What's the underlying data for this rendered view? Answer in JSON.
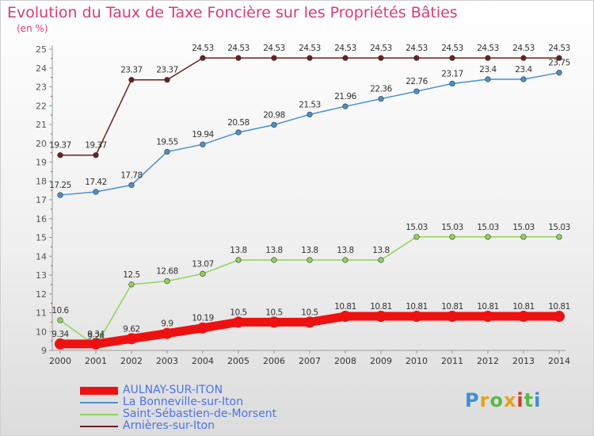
{
  "title": "Evolution du Taux de Taxe Foncière sur les Propriétés Bâties",
  "subtitle": "(en %)",
  "logo": {
    "text": "Proxiti",
    "colors": [
      "#3b8fd8",
      "#e8a020",
      "#5ab94a",
      "#e8a020",
      "#d43a2a",
      "#5ab94a",
      "#3b8fd8"
    ]
  },
  "chart_data": {
    "type": "line",
    "title": "Evolution du Taux de Taxe Foncière sur les Propriétés Bâties",
    "ylabel": "(en %)",
    "xlabel": "",
    "x": [
      "2000",
      "2001",
      "2002",
      "2003",
      "2004",
      "2005",
      "2006",
      "2007",
      "2008",
      "2009",
      "2010",
      "2011",
      "2012",
      "2013",
      "2014"
    ],
    "ylim": [
      9,
      25
    ],
    "yticks": [
      "9",
      "10",
      "11",
      "12",
      "13",
      "14",
      "15",
      "16",
      "17",
      "18",
      "19",
      "20",
      "21",
      "22",
      "23",
      "24",
      "25"
    ],
    "grid": false,
    "legend_position": "bottom-left",
    "series": [
      {
        "name": "Arnières-sur-Iton",
        "color": "#6b1f1f",
        "values": [
          19.37,
          19.37,
          23.37,
          23.37,
          24.53,
          24.53,
          24.53,
          24.53,
          24.53,
          24.53,
          24.53,
          24.53,
          24.53,
          24.53,
          24.53
        ],
        "labels": [
          "19.37",
          "19.37",
          "23.37",
          "23.37",
          "24.53",
          "24.53",
          "24.53",
          "24.53",
          "24.53",
          "24.53",
          "24.53",
          "24.53",
          "24.53",
          "24.53",
          "24.53"
        ]
      },
      {
        "name": "La Bonneville-sur-Iton",
        "color": "#4a8fd0",
        "values": [
          17.25,
          17.42,
          17.78,
          19.55,
          19.94,
          20.58,
          20.98,
          21.53,
          21.96,
          22.36,
          22.76,
          23.17,
          23.4,
          23.4,
          23.75
        ],
        "labels": [
          "17.25",
          "17.42",
          "17.78",
          "19.55",
          "19.94",
          "20.58",
          "20.98",
          "21.53",
          "21.96",
          "22.36",
          "22.76",
          "23.17",
          "23.4",
          "23.4",
          "23.75"
        ]
      },
      {
        "name": "Saint-Sébastien-de-Morsent",
        "color": "#8fd45a",
        "values": [
          10.6,
          9.24,
          12.5,
          12.68,
          13.07,
          13.8,
          13.8,
          13.8,
          13.8,
          13.8,
          15.03,
          15.03,
          15.03,
          15.03,
          15.03
        ],
        "labels": [
          "10.6",
          "9.24",
          "12.5",
          "12.68",
          "13.07",
          "13.8",
          "13.8",
          "13.8",
          "13.8",
          "13.8",
          "15.03",
          "15.03",
          "15.03",
          "15.03",
          "15.03"
        ]
      },
      {
        "name": "AULNAY-SUR-ITON",
        "color": "#ee1111",
        "values": [
          9.34,
          9.34,
          9.62,
          9.9,
          10.19,
          10.5,
          10.5,
          10.5,
          10.81,
          10.81,
          10.81,
          10.81,
          10.81,
          10.81,
          10.81
        ],
        "labels": [
          "9.34",
          "9.34",
          "9.62",
          "9.9",
          "10.19",
          "10.5",
          "10.5",
          "10.5",
          "10.81",
          "10.81",
          "10.81",
          "10.81",
          "10.81",
          "10.81",
          "10.81"
        ]
      }
    ]
  },
  "legend": [
    {
      "label": "AULNAY-SUR-ITON",
      "color": "#ee1111",
      "thick": true
    },
    {
      "label": "La Bonneville-sur-Iton",
      "color": "#4a8fd0",
      "thick": false
    },
    {
      "label": "Saint-Sébastien-de-Morsent",
      "color": "#8fd45a",
      "thick": false
    },
    {
      "label": "Arnières-sur-Iton",
      "color": "#6b1f1f",
      "thick": false
    }
  ]
}
